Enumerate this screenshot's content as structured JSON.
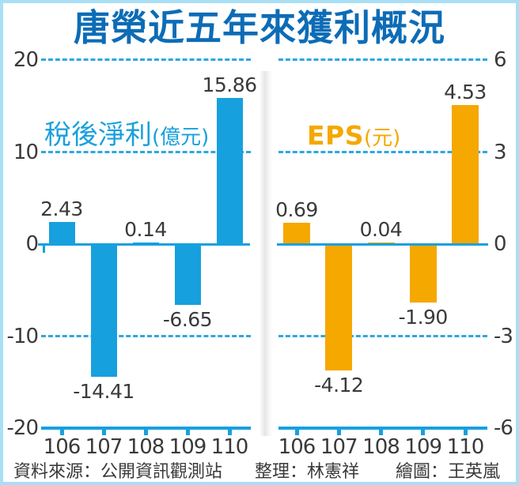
{
  "title": "唐榮近五年來獲利概況",
  "footer": {
    "source": "資料來源：公開資訊觀測站",
    "editor": "整理：林憲祥",
    "illustrator": "繪圖：王英嵐"
  },
  "colors": {
    "title_blue": "#0D6CB6",
    "bar_blue": "#17A0DE",
    "bar_orange": "#F5A800",
    "grid_dash_blue": "#2EA7E0",
    "text_dark": "#3A3A3A",
    "frame_border": "#A9DFF5"
  },
  "chart_data": [
    {
      "key": "net-profit",
      "type": "bar",
      "title": "稅後淨利",
      "unit": "(億元)",
      "categories": [
        "106",
        "107",
        "108",
        "109",
        "110"
      ],
      "values": [
        2.43,
        -14.41,
        0.14,
        -6.65,
        15.86
      ],
      "value_labels": [
        "2.43",
        "-14.41",
        "0.14",
        "-6.65",
        "15.86"
      ],
      "ylim": [
        -20,
        20
      ],
      "yticks": [
        20,
        10,
        0,
        -10,
        -20
      ],
      "ytick_labels": [
        "20",
        "10",
        "0",
        "-10",
        "-20"
      ],
      "yaxis_side": "left",
      "bar_color": "#17A0DE",
      "grid": "dashed horizontal lines at 20, 10, -10; solid zero line; solid bottom axis with category ticks",
      "legend_position": "none"
    },
    {
      "key": "eps",
      "type": "bar",
      "title": "EPS",
      "unit": "(元)",
      "categories": [
        "106",
        "107",
        "108",
        "109",
        "110"
      ],
      "values": [
        0.69,
        -4.12,
        0.04,
        -1.9,
        4.53
      ],
      "value_labels": [
        "0.69",
        "-4.12",
        "0.04",
        "-1.90",
        "4.53"
      ],
      "ylim": [
        -6,
        6
      ],
      "yticks": [
        6,
        3,
        0,
        -3,
        -6
      ],
      "ytick_labels": [
        "6",
        "3",
        "0",
        "-3",
        "-6"
      ],
      "yaxis_side": "right",
      "bar_color": "#F5A800",
      "grid": "dashed horizontal lines at 6, 3, -3; solid zero line; solid bottom axis with category ticks",
      "legend_position": "none"
    }
  ]
}
